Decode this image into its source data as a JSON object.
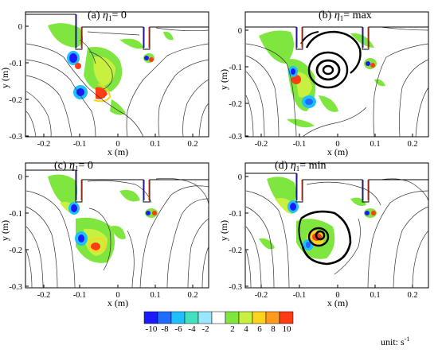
{
  "panels": [
    {
      "label": "(a)",
      "eta": "η",
      "eta_sub": "1",
      "cond": "= 0",
      "ylabel": "y (m)",
      "xlabel": "x (m)",
      "yticks": [
        "0",
        "-0.1",
        "-0.2",
        "-0.3"
      ],
      "xticks": [
        "-0.2",
        "-0.1",
        "0",
        "0.1",
        "0.2"
      ]
    },
    {
      "label": "(b)",
      "eta": "η",
      "eta_sub": "1",
      "cond": "= max",
      "ylabel": "y (m)",
      "xlabel": "x (m)",
      "yticks": [
        "0",
        "-0.1",
        "-0.2",
        "-0.3"
      ],
      "xticks": [
        "-0.2",
        "-0.1",
        "0",
        "0.1",
        "0.2"
      ]
    },
    {
      "label": "(c)",
      "eta": "η",
      "eta_sub": "1",
      "cond": "= 0",
      "ylabel": "y (m)",
      "xlabel": "x (m)",
      "yticks": [
        "0",
        "-0.1",
        "-0.2",
        "-0.3"
      ],
      "xticks": [
        "-0.2",
        "-0.1",
        "0",
        "0.1",
        "0.2"
      ]
    },
    {
      "label": "(d)",
      "eta": "η",
      "eta_sub": "1",
      "cond": "= min",
      "ylabel": "y (m)",
      "xlabel": "x (m)",
      "yticks": [
        "0",
        "-0.1",
        "-0.2",
        "-0.3"
      ],
      "xticks": [
        "-0.2",
        "-0.1",
        "0",
        "0.1",
        "0.2"
      ]
    }
  ],
  "colorbar": {
    "labels": [
      "-10",
      "-8",
      "-6",
      "-4",
      "-2",
      "2",
      "4",
      "6",
      "8",
      "10"
    ],
    "unit_text": "unit: s",
    "unit_exp": "-1",
    "colors": [
      "#1a1aff",
      "#1f6bff",
      "#1fbfff",
      "#43e0c0",
      "#9be6ff",
      "#ffffff",
      "#7fe640",
      "#c8f040",
      "#ffd21e",
      "#ff9a1e",
      "#ff3c14"
    ]
  }
}
